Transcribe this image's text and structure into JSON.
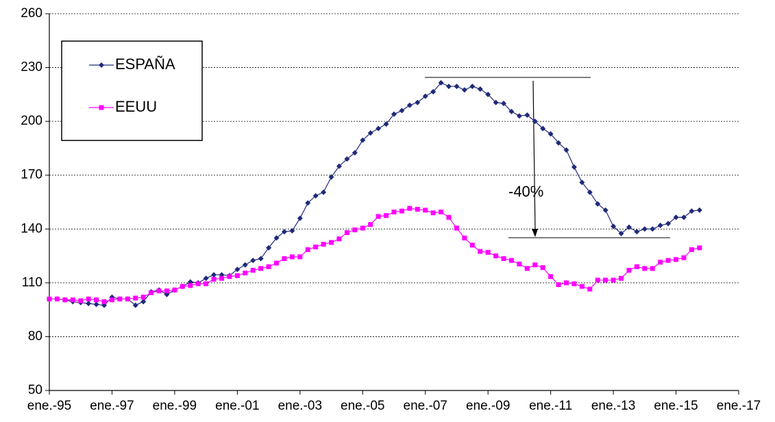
{
  "chart_data": {
    "type": "line",
    "categories": [
      "ene.-95",
      null,
      null,
      null,
      null,
      null,
      null,
      null,
      "ene.-97",
      null,
      null,
      null,
      null,
      null,
      null,
      null,
      "ene.-99",
      null,
      null,
      null,
      null,
      null,
      null,
      null,
      "ene.-01",
      null,
      null,
      null,
      null,
      null,
      null,
      null,
      "ene.-03",
      null,
      null,
      null,
      null,
      null,
      null,
      null,
      "ene.-05",
      null,
      null,
      null,
      null,
      null,
      null,
      null,
      "ene.-07",
      null,
      null,
      null,
      null,
      null,
      null,
      null,
      "ene.-09",
      null,
      null,
      null,
      null,
      null,
      null,
      null,
      "ene.-11",
      null,
      null,
      null,
      null,
      null,
      null,
      null,
      "ene.-13",
      null,
      null,
      null,
      null,
      null,
      null,
      null,
      "ene.-15",
      null,
      null,
      null,
      null,
      null,
      null,
      null,
      "ene.-17"
    ],
    "series": [
      {
        "name": "ESPAÑA",
        "color": "#1f2a7a",
        "marker": "diamond",
        "values": [
          101,
          101,
          100.5,
          99.5,
          99,
          98.5,
          98,
          97.5,
          102,
          101,
          101,
          97.5,
          99.5,
          105,
          106,
          103.5,
          106,
          108,
          110.5,
          110,
          112.5,
          114.5,
          114.5,
          114,
          117.5,
          120,
          122.5,
          123.5,
          129.5,
          135,
          138.5,
          139,
          146,
          154.5,
          158.5,
          160.5,
          169,
          175,
          179,
          182.5,
          189.5,
          193.5,
          196,
          198.5,
          204,
          206,
          209,
          210.5,
          214,
          216.5,
          221.5,
          219.5,
          219.5,
          217.5,
          219.5,
          218,
          215,
          210.5,
          210,
          205.5,
          203,
          203.5,
          200,
          196,
          193,
          188,
          184,
          174.5,
          166,
          160.5,
          154,
          150.5,
          141.5,
          137.5,
          141,
          138.5,
          140,
          140,
          142,
          143,
          146.5,
          146.5,
          150,
          150.5,
          null,
          null,
          null,
          null,
          null
        ]
      },
      {
        "name": "EEUU",
        "color": "#ff00ff",
        "marker": "square",
        "values": [
          101,
          101,
          100.5,
          100.5,
          100,
          101,
          100.5,
          99.5,
          100.5,
          101,
          101,
          101.5,
          102,
          104.5,
          105.5,
          105.5,
          106,
          108,
          108.5,
          109.5,
          109.5,
          112,
          112.5,
          113.5,
          114,
          115.5,
          117,
          118,
          119,
          121,
          123.5,
          124.5,
          124.5,
          128.5,
          130,
          131.5,
          132.5,
          134.5,
          138,
          139.5,
          140.5,
          142.5,
          147,
          147.5,
          149.5,
          150,
          151.5,
          151,
          150.5,
          149,
          149.5,
          146.5,
          140.5,
          135,
          131,
          127.5,
          127,
          125,
          123.5,
          122.5,
          120.5,
          118,
          120,
          118.5,
          113.5,
          109,
          110,
          109.5,
          108,
          106.5,
          111.5,
          111.5,
          111.5,
          112.5,
          117,
          119,
          118,
          118,
          121.5,
          122.5,
          123,
          124,
          128.5,
          129.5,
          null,
          null,
          null,
          null,
          null
        ]
      }
    ],
    "ylim": [
      50,
      260
    ],
    "yticks": [
      50,
      80,
      110,
      140,
      170,
      200,
      230,
      260
    ],
    "grid": true,
    "annotation": "-40%"
  }
}
